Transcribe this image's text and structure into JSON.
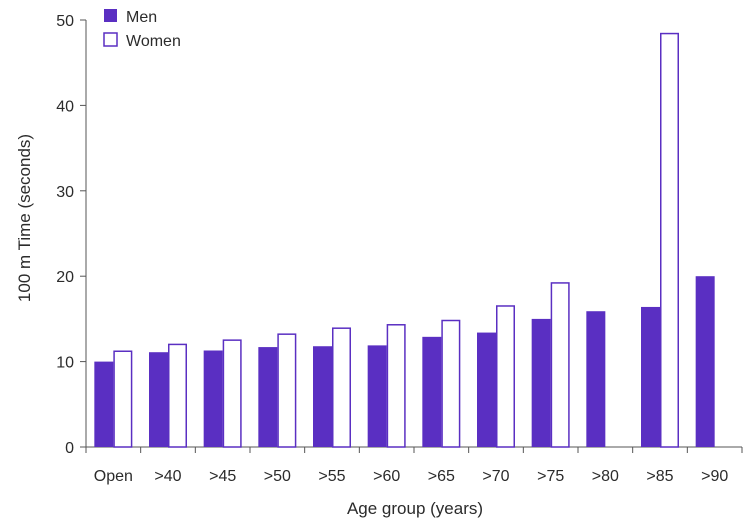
{
  "chart_data": {
    "type": "bar",
    "categories": [
      "Open",
      ">40",
      ">45",
      ">50",
      ">55",
      ">60",
      ">65",
      ">70",
      ">75",
      ">80",
      ">85",
      ">90"
    ],
    "series": [
      {
        "name": "Men",
        "values": [
          10.0,
          11.1,
          11.3,
          11.7,
          11.8,
          11.9,
          12.9,
          13.4,
          15.0,
          15.9,
          16.4,
          20.0
        ],
        "color": "#5a2fc2",
        "fill_style": "solid"
      },
      {
        "name": "Women",
        "values": [
          11.3,
          12.1,
          12.6,
          13.3,
          14.0,
          14.4,
          14.9,
          16.6,
          19.3,
          null,
          48.5,
          null
        ],
        "color": "#5a2fc2",
        "fill_style": "outline"
      }
    ],
    "xlabel": "Age group (years)",
    "ylabel": "100 m Time (seconds)",
    "ylim": [
      0,
      50
    ],
    "yticks": [
      0,
      10,
      20,
      30,
      40,
      50
    ],
    "grid": false,
    "legend_position": "top-left"
  }
}
